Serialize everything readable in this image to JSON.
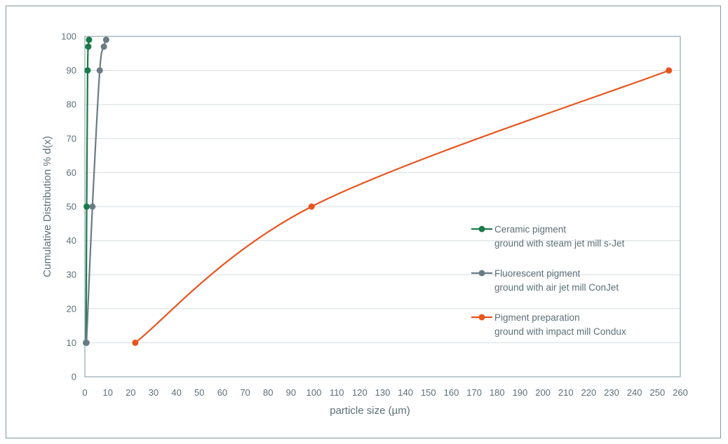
{
  "chart_data": {
    "type": "line",
    "xlabel": "particle size (µm)",
    "ylabel": "Cumulative Distribution % d(x)",
    "xlim": [
      0,
      260
    ],
    "ylim": [
      0,
      100
    ],
    "x_ticks": [
      "0",
      "10",
      "20",
      "30",
      "40",
      "50",
      "60",
      "70",
      "80",
      "90",
      "100",
      "110",
      "120",
      "130",
      "140",
      "150",
      "160",
      "170",
      "180",
      "190",
      "200",
      "210",
      "220",
      "230",
      "240",
      "250",
      "260"
    ],
    "y_ticks": [
      "0",
      "10",
      "20",
      "30",
      "40",
      "50",
      "60",
      "70",
      "80",
      "90",
      "100"
    ],
    "grid": "horizontal",
    "legend_position": "right",
    "series": [
      {
        "name": "Ceramic pigment",
        "name_line2": "ground with steam jet mill s-Jet",
        "color": "#1b7a4a",
        "points": [
          [
            0.5,
            10
          ],
          [
            0.8,
            50
          ],
          [
            1.2,
            90
          ],
          [
            1.5,
            97
          ],
          [
            1.8,
            99
          ]
        ]
      },
      {
        "name": "Fluorescent pigment",
        "name_line2": "ground with air jet mill ConJet",
        "color": "#6a7b85",
        "points": [
          [
            0.7,
            10
          ],
          [
            3.3,
            50
          ],
          [
            6.5,
            90
          ],
          [
            8.3,
            97
          ],
          [
            9.3,
            99
          ]
        ]
      },
      {
        "name": "Pigment preparation",
        "name_line2": "ground with impact mill Condux",
        "color": "#e8541e",
        "points": [
          [
            22,
            10
          ],
          [
            99,
            50
          ],
          [
            255,
            90
          ]
        ]
      }
    ]
  }
}
